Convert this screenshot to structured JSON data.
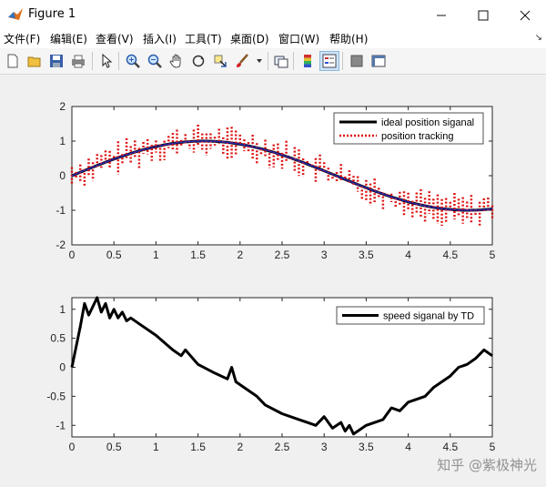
{
  "window": {
    "title": "Figure 1"
  },
  "menu": [
    "文件(F)",
    "编辑(E)",
    "查看(V)",
    "插入(I)",
    "工具(T)",
    "桌面(D)",
    "窗口(W)",
    "帮助(H)"
  ],
  "toolbar": {
    "icons": [
      "new-figure-icon",
      "open-file-icon",
      "save-icon",
      "print-icon",
      "pointer-icon",
      "zoom-in-icon",
      "zoom-out-icon",
      "pan-icon",
      "rotate-3d-icon",
      "data-cursor-icon",
      "brush-icon",
      "link-plot-icon",
      "colorbar-icon",
      "legend-icon",
      "hide-plot-tools-icon",
      "show-plot-tools-icon"
    ]
  },
  "chart_data": [
    {
      "type": "line",
      "title": "",
      "xlabel": "",
      "ylabel": "",
      "xlim": [
        0,
        5
      ],
      "ylim": [
        -2,
        2
      ],
      "xticks": [
        "0",
        "0.5",
        "1",
        "1.5",
        "2",
        "2.5",
        "3",
        "3.5",
        "4",
        "4.5",
        "5"
      ],
      "yticks": [
        "2",
        "1",
        "0",
        "-1",
        "-2"
      ],
      "legend_placement": "top-right",
      "series": [
        {
          "name": "ideal position siganal",
          "style": "solid",
          "color": "#000000",
          "function": "sin(t)",
          "x_range": [
            0,
            5
          ]
        },
        {
          "name": "position tracking",
          "style": "dotted",
          "color": "#dd1111",
          "function": "sin(t) + noise",
          "noise_amplitude": 0.5,
          "x_range": [
            0,
            5
          ]
        }
      ]
    },
    {
      "type": "line",
      "title": "",
      "xlabel": "",
      "ylabel": "",
      "xlim": [
        0,
        5
      ],
      "ylim": [
        -1.2,
        1.2
      ],
      "xticks": [
        "0",
        "0.5",
        "1",
        "1.5",
        "2",
        "2.5",
        "3",
        "3.5",
        "4",
        "4.5",
        "5"
      ],
      "yticks": [
        "1",
        "0.5",
        "0",
        "-0.5",
        "-1"
      ],
      "legend_placement": "top-right",
      "series": [
        {
          "name": "speed siganal by TD",
          "style": "solid",
          "color": "#000000",
          "x": [
            0,
            0.1,
            0.15,
            0.2,
            0.25,
            0.3,
            0.35,
            0.4,
            0.45,
            0.5,
            0.55,
            0.6,
            0.65,
            0.7,
            0.8,
            1.0,
            1.2,
            1.3,
            1.35,
            1.5,
            1.7,
            1.85,
            1.9,
            1.95,
            2.0,
            2.2,
            2.3,
            2.5,
            2.7,
            2.8,
            2.9,
            3.0,
            3.1,
            3.2,
            3.25,
            3.3,
            3.35,
            3.5,
            3.7,
            3.8,
            3.9,
            4.0,
            4.2,
            4.3,
            4.45,
            4.5,
            4.6,
            4.7,
            4.8,
            4.9,
            5.0
          ],
          "y": [
            0.0,
            0.7,
            1.1,
            0.9,
            1.05,
            1.2,
            0.95,
            1.1,
            0.85,
            1.0,
            0.85,
            0.95,
            0.8,
            0.85,
            0.75,
            0.55,
            0.3,
            0.2,
            0.3,
            0.05,
            -0.1,
            -0.2,
            0.0,
            -0.25,
            -0.3,
            -0.5,
            -0.65,
            -0.8,
            -0.9,
            -0.95,
            -1.0,
            -0.85,
            -1.05,
            -0.95,
            -1.1,
            -1.0,
            -1.15,
            -1.0,
            -0.9,
            -0.7,
            -0.75,
            -0.6,
            -0.5,
            -0.35,
            -0.2,
            -0.15,
            0.0,
            0.05,
            0.15,
            0.3,
            0.2
          ]
        }
      ]
    }
  ],
  "watermark": "知乎 @紫极神光"
}
